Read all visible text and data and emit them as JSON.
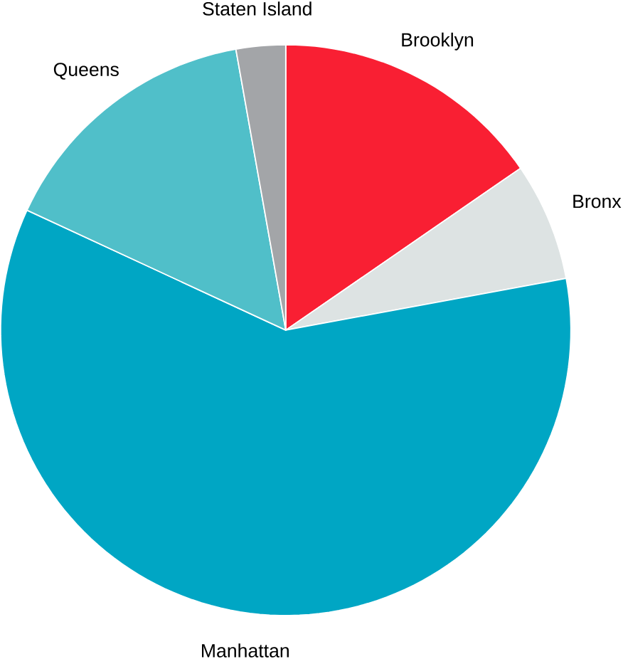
{
  "chart_data": {
    "type": "pie",
    "categories": [
      "Brooklyn",
      "Bronx",
      "Manhattan",
      "Queens",
      "Staten Island"
    ],
    "values": [
      15.4,
      6.7,
      59.8,
      15.3,
      2.8
    ],
    "colors": [
      "#f91f33",
      "#dde3e3",
      "#00a6c4",
      "#50bfc9",
      "#a3a5a8"
    ]
  }
}
